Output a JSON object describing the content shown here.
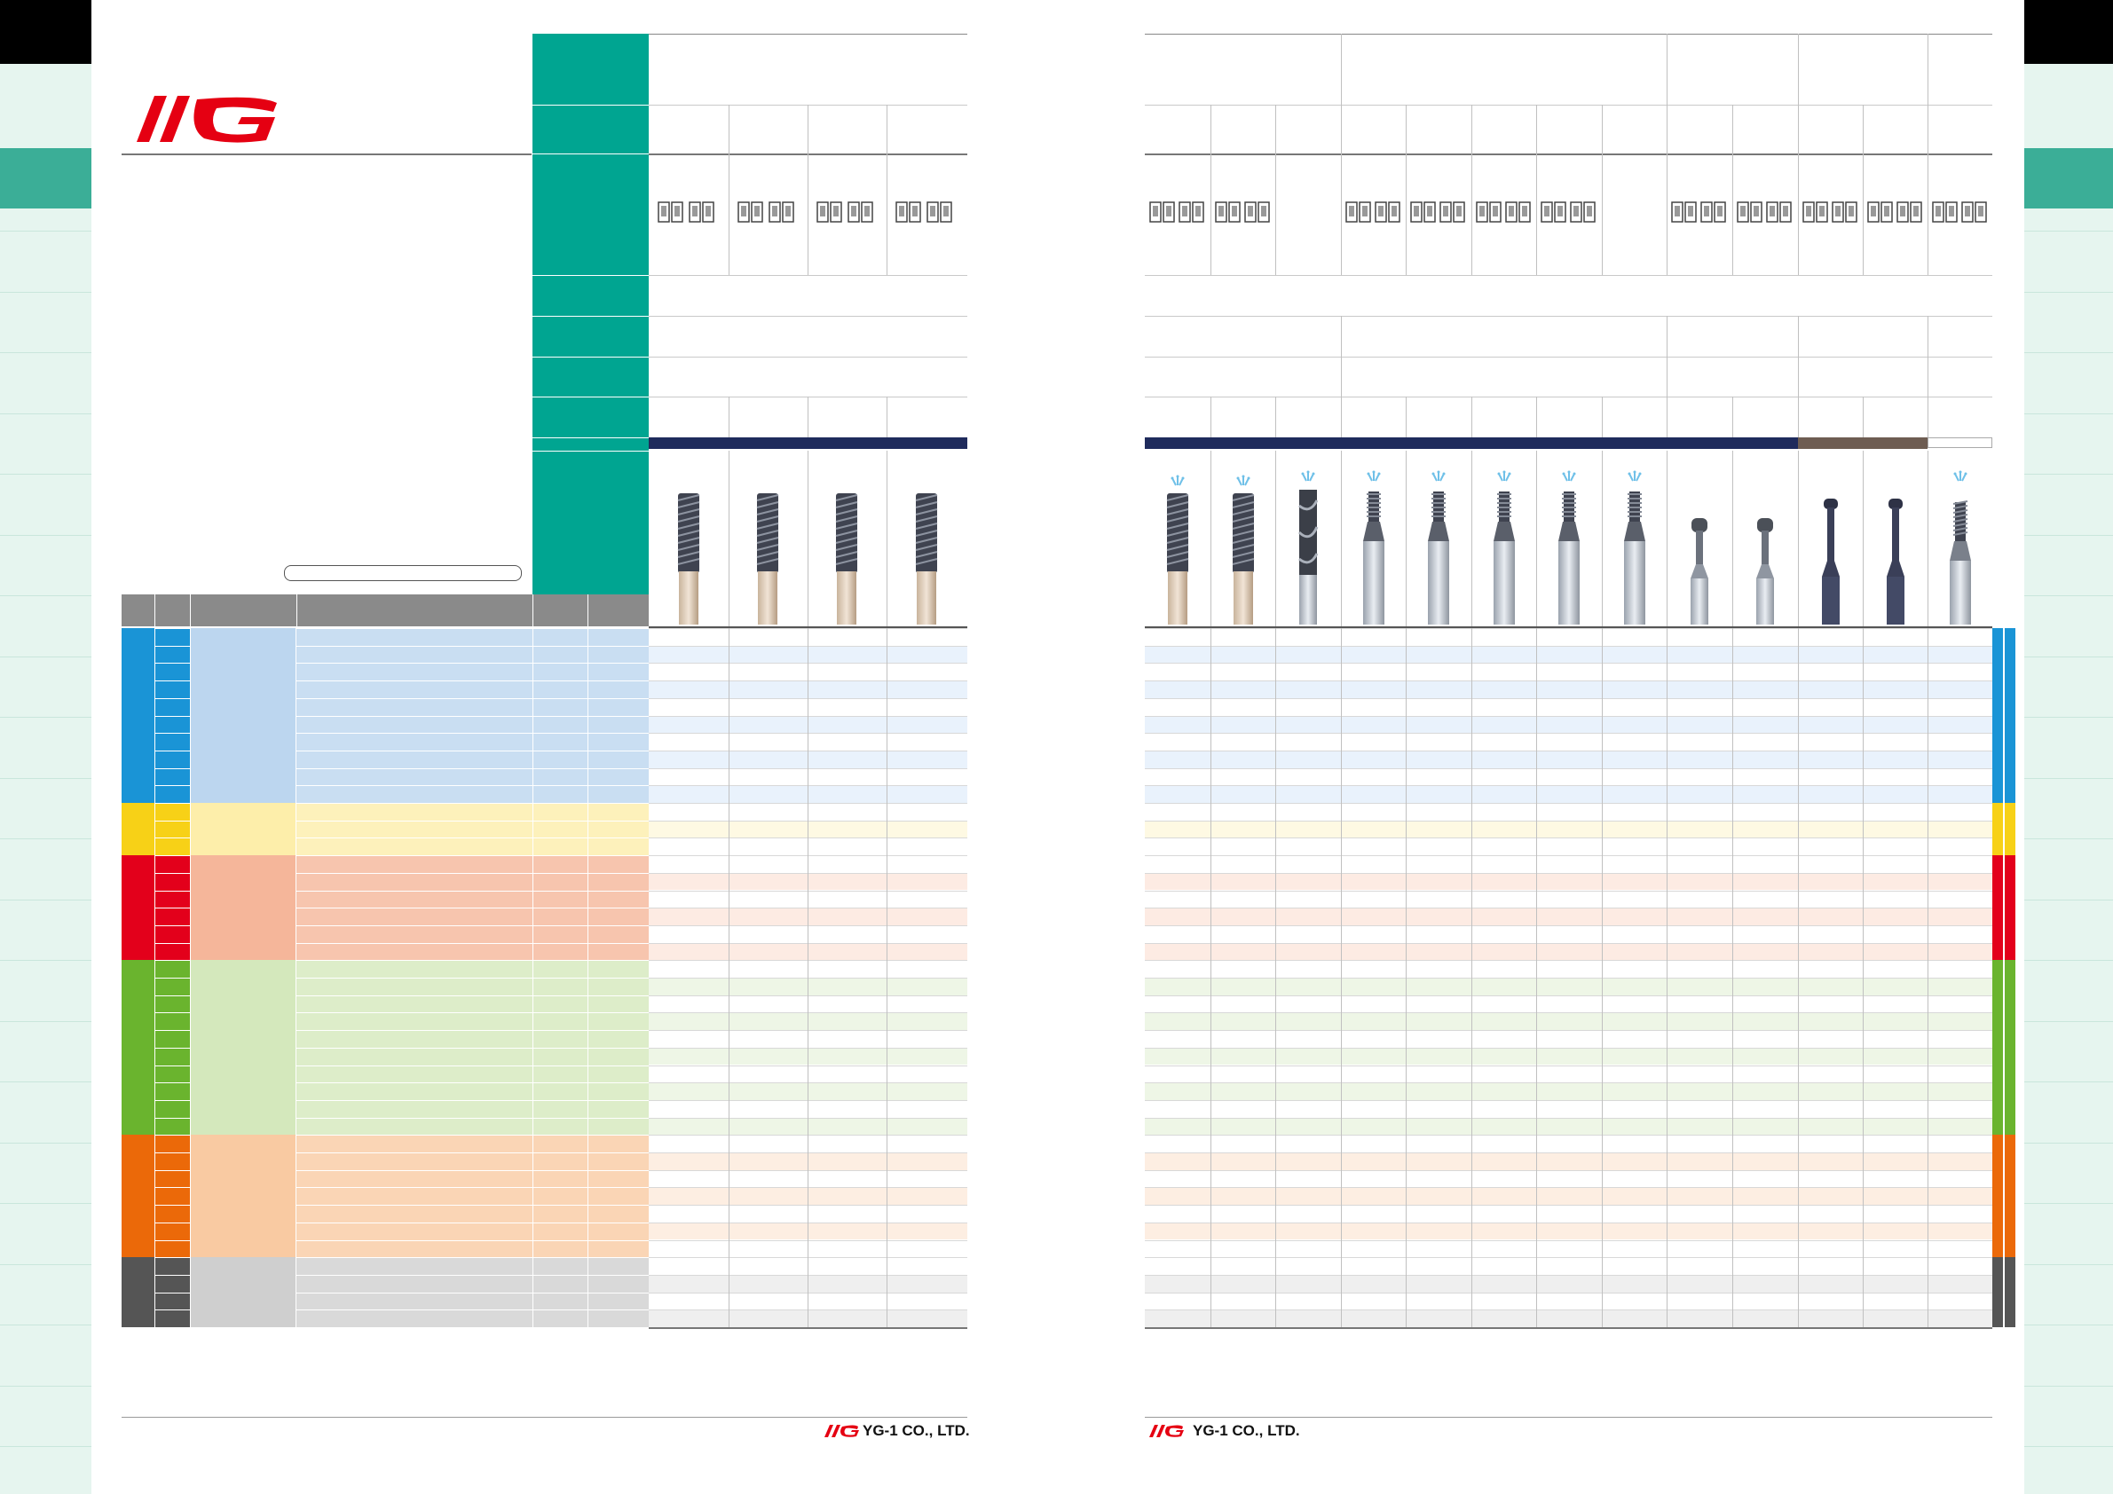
{
  "brand": {
    "logo_mark": "YG",
    "company": "YG-1 CO., LTD."
  },
  "colors": {
    "accent": "#00a591",
    "navy": "#1f2b5c",
    "bronze": "#6e5d52",
    "steel": "#1a94d6",
    "stainless": "#f7d117",
    "cast_iron": "#e3001b",
    "nonferrous": "#6ab42e",
    "heat_resistant": "#eb6909",
    "hardened": "#555555"
  },
  "material_groups": [
    {
      "name": "steel-group",
      "color": "#1a94d6",
      "tint": "#bcd6ef",
      "rowtint": "#e9f2fc",
      "rows": 10
    },
    {
      "name": "stainless-group",
      "color": "#f7d117",
      "tint": "#fdeeaa",
      "rowtint": "#fef9e3",
      "rows": 3
    },
    {
      "name": "cast-iron-group",
      "color": "#e3001b",
      "tint": "#f5b69a",
      "rowtint": "#fdebe3",
      "rows": 6
    },
    {
      "name": "nonferrous-group",
      "color": "#6ab42e",
      "tint": "#d4e8bc",
      "rowtint": "#eef6e6",
      "rows": 10
    },
    {
      "name": "heat-resistant-group",
      "color": "#eb6909",
      "tint": "#f9caa2",
      "rowtint": "#fdeee2",
      "rows": 7
    },
    {
      "name": "hardened-group",
      "color": "#555555",
      "tint": "#cfcfcf",
      "rowtint": "#efefef",
      "rows": 4
    }
  ]
}
